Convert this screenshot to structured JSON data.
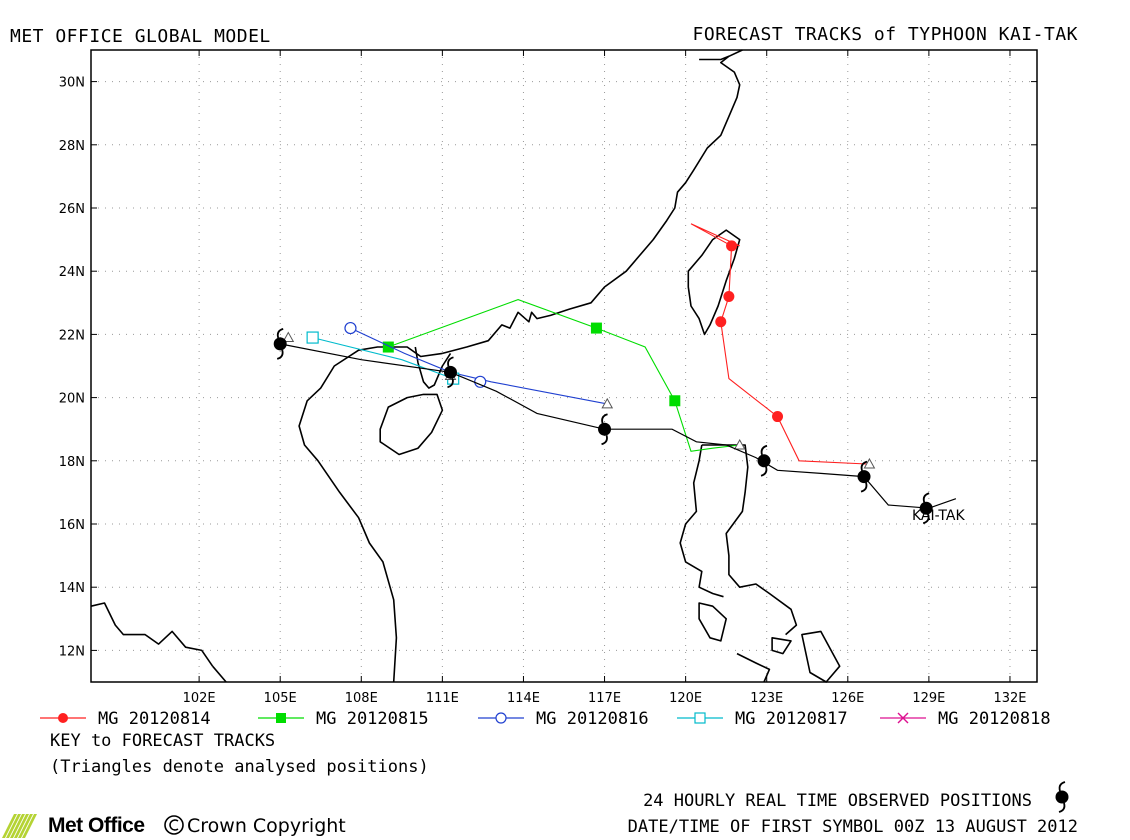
{
  "header": {
    "left_title": "MET OFFICE GLOBAL MODEL",
    "right_title": "FORECAST TRACKS of TYPHOON KAI-TAK"
  },
  "map": {
    "lon_range": [
      98,
      133
    ],
    "lat_range": [
      11,
      31
    ],
    "lon_ticks": [
      {
        "value": 102,
        "label": "102E"
      },
      {
        "value": 105,
        "label": "105E"
      },
      {
        "value": 108,
        "label": "108E"
      },
      {
        "value": 111,
        "label": "111E"
      },
      {
        "value": 114,
        "label": "114E"
      },
      {
        "value": 117,
        "label": "117E"
      },
      {
        "value": 120,
        "label": "120E"
      },
      {
        "value": 123,
        "label": "123E"
      },
      {
        "value": 126,
        "label": "126E"
      },
      {
        "value": 129,
        "label": "129E"
      },
      {
        "value": 132,
        "label": "132E"
      }
    ],
    "lat_ticks": [
      {
        "value": 12,
        "label": "12N"
      },
      {
        "value": 14,
        "label": "14N"
      },
      {
        "value": 16,
        "label": "16N"
      },
      {
        "value": 18,
        "label": "18N"
      },
      {
        "value": 20,
        "label": "20N"
      },
      {
        "value": 22,
        "label": "22N"
      },
      {
        "value": 24,
        "label": "24N"
      },
      {
        "value": 26,
        "label": "26N"
      },
      {
        "value": 28,
        "label": "28N"
      },
      {
        "value": 30,
        "label": "30N"
      }
    ],
    "grid": "dotted",
    "storm_label": "KAI-TAK",
    "coast_color": "#000000"
  },
  "chart_data": {
    "type": "map",
    "observed_track": {
      "color": "#000000",
      "symbol": "typhoon-icon",
      "line": [
        [
          130,
          16.8
        ],
        [
          129,
          16.5
        ],
        [
          127.5,
          16.6
        ],
        [
          126.6,
          17.5
        ],
        [
          125,
          17.6
        ],
        [
          123.4,
          17.7
        ],
        [
          122.6,
          18.1
        ],
        [
          121.5,
          18.5
        ],
        [
          120.4,
          18.6
        ],
        [
          119.5,
          19.0
        ],
        [
          117,
          19.0
        ],
        [
          114.5,
          19.5
        ],
        [
          113,
          20.2
        ],
        [
          111.3,
          20.8
        ],
        [
          108,
          21.2
        ],
        [
          105,
          21.7
        ]
      ],
      "symbols": [
        [
          128.9,
          16.5
        ],
        [
          126.6,
          17.5
        ],
        [
          122.9,
          18.0
        ],
        [
          117,
          19.0
        ],
        [
          111.3,
          20.8
        ],
        [
          105,
          21.7
        ]
      ]
    },
    "forecasts": [
      {
        "name": "MG 20120814",
        "color": "#ff2020",
        "marker": "filled-circle",
        "line": [
          [
            126.7,
            17.9
          ],
          [
            124.2,
            18.0
          ],
          [
            123.4,
            19.4
          ],
          [
            121.6,
            20.6
          ],
          [
            121.3,
            22.4
          ],
          [
            121.6,
            23.2
          ],
          [
            121.7,
            24.8
          ],
          [
            120.2,
            25.5
          ],
          [
            122.0,
            24.8
          ],
          [
            121.6,
            24.9
          ]
        ],
        "points": [
          [
            123.4,
            19.4
          ],
          [
            121.3,
            22.4
          ],
          [
            121.6,
            23.2
          ],
          [
            121.7,
            24.8
          ]
        ]
      },
      {
        "name": "MG 20120815",
        "color": "#00dd00",
        "marker": "filled-square",
        "line": [
          [
            122.0,
            18.5
          ],
          [
            121.0,
            18.4
          ],
          [
            120.2,
            18.3
          ],
          [
            119.6,
            19.9
          ],
          [
            118.5,
            21.6
          ],
          [
            116.7,
            22.2
          ],
          [
            113.8,
            23.1
          ],
          [
            109.0,
            21.6
          ]
        ],
        "points": [
          [
            119.6,
            19.9
          ],
          [
            116.7,
            22.2
          ],
          [
            109.0,
            21.6
          ]
        ]
      },
      {
        "name": "MG 20120816",
        "color": "#2040d0",
        "marker": "open-circle",
        "line": [
          [
            117.1,
            19.8
          ],
          [
            112.8,
            20.5
          ],
          [
            111.3,
            20.8
          ],
          [
            109.6,
            21.4
          ],
          [
            107.6,
            22.2
          ]
        ],
        "points": [
          [
            112.4,
            20.5
          ],
          [
            107.6,
            22.2
          ]
        ]
      },
      {
        "name": "MG 20120817",
        "color": "#00bbcc",
        "marker": "open-square",
        "line": [
          [
            111.4,
            20.6
          ],
          [
            109.5,
            21.2
          ],
          [
            106.2,
            21.9
          ]
        ],
        "points": [
          [
            111.4,
            20.6
          ],
          [
            106.2,
            21.9
          ]
        ]
      },
      {
        "name": "MG 20120818",
        "color": "#dd1090",
        "marker": "cross",
        "line": [
          [
            105.3,
            21.9
          ],
          [
            105.0,
            21.8
          ]
        ],
        "points": []
      }
    ],
    "analysed_triangles": [
      [
        126.8,
        17.9
      ],
      [
        122.0,
        18.5
      ],
      [
        117.1,
        19.8
      ],
      [
        111.3,
        20.7
      ],
      [
        105.3,
        21.9
      ]
    ]
  },
  "legend": {
    "items": [
      {
        "label": "MG 20120814",
        "color": "#ff2020",
        "marker": "filled-circle"
      },
      {
        "label": "MG 20120815",
        "color": "#00dd00",
        "marker": "filled-square"
      },
      {
        "label": "MG 20120816",
        "color": "#2040d0",
        "marker": "open-circle"
      },
      {
        "label": "MG 20120817",
        "color": "#00bbcc",
        "marker": "open-square"
      },
      {
        "label": "MG 20120818",
        "color": "#dd1090",
        "marker": "cross"
      }
    ],
    "key_title": "KEY to FORECAST TRACKS",
    "key_note": "(Triangles denote analysed positions)"
  },
  "footer": {
    "observed_label": "24 HOURLY REAL TIME OBSERVED POSITIONS",
    "datetime_label": "DATE/TIME OF FIRST SYMBOL 00Z 13 AUGUST 2012",
    "logo_text": "Met Office",
    "copyright": "Crown Copyright",
    "logo_color": "#b5d334"
  }
}
